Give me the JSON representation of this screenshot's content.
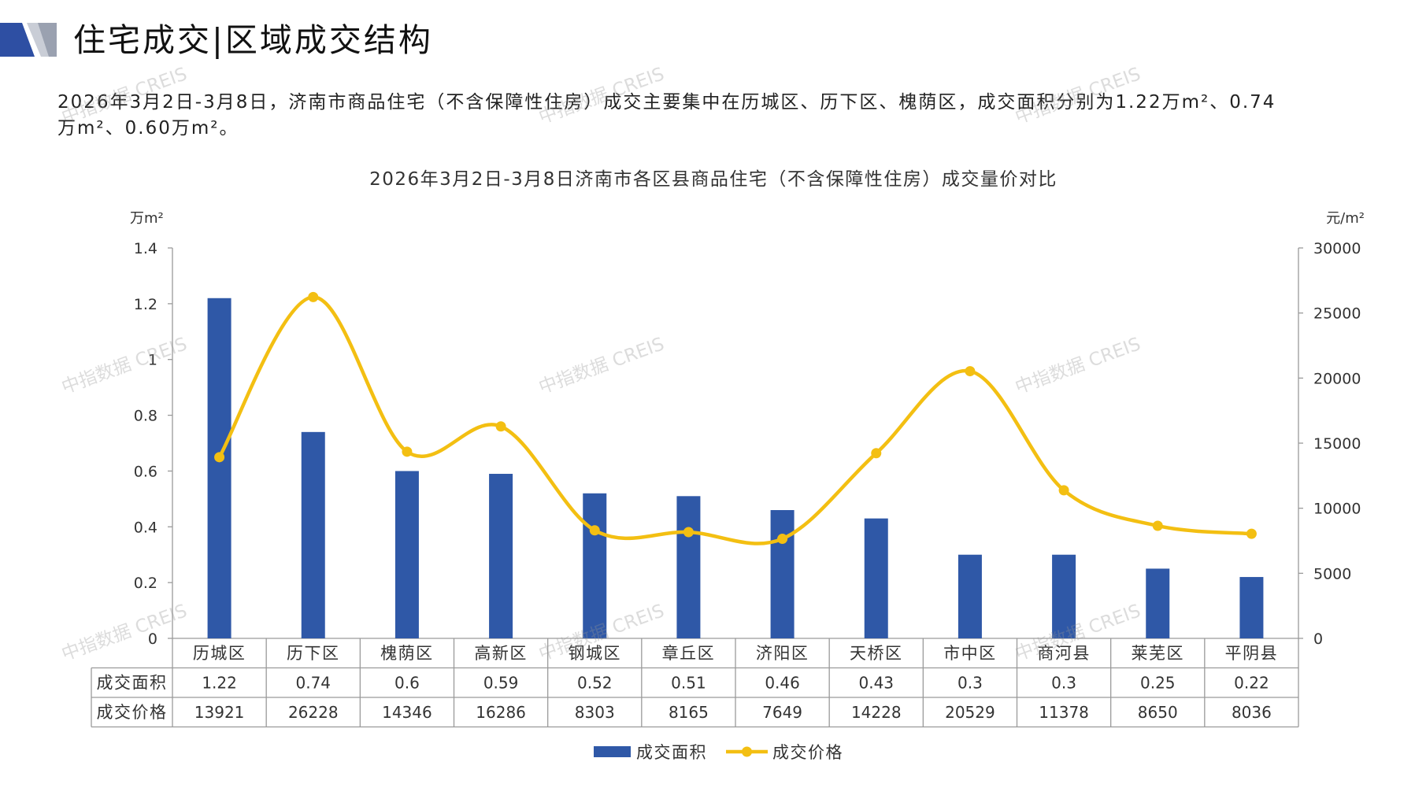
{
  "header": {
    "title": "住宅成交|区域成交结构"
  },
  "summary": {
    "lines": [
      "2026年3月2日-3月8日，济南市商品住宅（不含保障性住房）成交主要集中在历城区、历下区、槐荫区，成交面积分别为1.22万m²、0.74",
      "万m²、0.60万m²。"
    ]
  },
  "watermark": {
    "text": "中指数据 CREIS"
  },
  "colors": {
    "bar": "#2F58A7",
    "line": "#F3BF12",
    "axis": "#9A9A9A"
  },
  "chart_data": {
    "type": "bar",
    "title": "2026年3月2日-3月8日济南市各区县商品住宅（不含保障性住房）成交量价对比",
    "categories": [
      "历城区",
      "历下区",
      "槐荫区",
      "高新区",
      "钢城区",
      "章丘区",
      "济阳区",
      "天桥区",
      "市中区",
      "商河县",
      "莱芜区",
      "平阴县"
    ],
    "series": [
      {
        "name": "成交面积",
        "type": "bar",
        "y_axis": "left",
        "values": [
          1.22,
          0.74,
          0.6,
          0.59,
          0.52,
          0.51,
          0.46,
          0.43,
          0.3,
          0.3,
          0.25,
          0.22
        ]
      },
      {
        "name": "成交价格",
        "type": "line",
        "y_axis": "right",
        "smooth": true,
        "values": [
          13921,
          26228,
          14346,
          16286,
          8303,
          8165,
          7649,
          14228,
          20529,
          11378,
          8650,
          8036
        ]
      }
    ],
    "y_left": {
      "label": "万m²",
      "lim": [
        0,
        1.4
      ],
      "ticks": [
        0,
        0.2,
        0.4,
        0.6,
        0.8,
        1,
        1.2,
        1.4
      ]
    },
    "y_right": {
      "label": "元/m²",
      "lim": [
        0,
        30000
      ],
      "ticks": [
        0,
        5000,
        10000,
        15000,
        20000,
        25000,
        30000
      ]
    },
    "grid": false,
    "legend": "bottom",
    "data_table": true
  }
}
